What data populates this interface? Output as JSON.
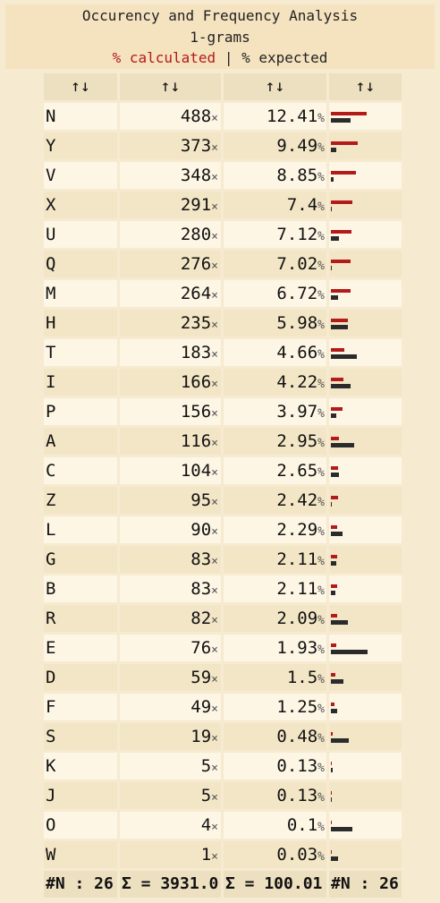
{
  "header": {
    "title": "Occurency and Frequency Analysis",
    "subtitle": "1-grams",
    "legend_calc": "% calculated",
    "legend_sep": "|",
    "legend_exp": "% expected",
    "calc_color": "#b31b1b",
    "exp_color": "#2b2b2b"
  },
  "columns": [
    "↑↓",
    "↑↓",
    "↑↓",
    "↑↓"
  ],
  "unit_count": "×",
  "unit_pct": "%",
  "rows": [
    {
      "letter": "N",
      "count": "488",
      "pct": "12.41",
      "calc": 12.41,
      "exp": 6.75
    },
    {
      "letter": "Y",
      "count": "373",
      "pct": "9.49",
      "calc": 9.49,
      "exp": 1.97
    },
    {
      "letter": "V",
      "count": "348",
      "pct": "8.85",
      "calc": 8.85,
      "exp": 0.98
    },
    {
      "letter": "X",
      "count": "291",
      "pct": "7.4",
      "calc": 7.4,
      "exp": 0.15
    },
    {
      "letter": "U",
      "count": "280",
      "pct": "7.12",
      "calc": 7.12,
      "exp": 2.76
    },
    {
      "letter": "Q",
      "count": "276",
      "pct": "7.02",
      "calc": 7.02,
      "exp": 0.1
    },
    {
      "letter": "M",
      "count": "264",
      "pct": "6.72",
      "calc": 6.72,
      "exp": 2.41
    },
    {
      "letter": "H",
      "count": "235",
      "pct": "5.98",
      "calc": 5.98,
      "exp": 6.09
    },
    {
      "letter": "T",
      "count": "183",
      "pct": "4.66",
      "calc": 4.66,
      "exp": 9.06
    },
    {
      "letter": "I",
      "count": "166",
      "pct": "4.22",
      "calc": 4.22,
      "exp": 6.97
    },
    {
      "letter": "P",
      "count": "156",
      "pct": "3.97",
      "calc": 3.97,
      "exp": 1.93
    },
    {
      "letter": "A",
      "count": "116",
      "pct": "2.95",
      "calc": 2.95,
      "exp": 8.17
    },
    {
      "letter": "C",
      "count": "104",
      "pct": "2.65",
      "calc": 2.65,
      "exp": 2.78
    },
    {
      "letter": "Z",
      "count": "95",
      "pct": "2.42",
      "calc": 2.42,
      "exp": 0.07
    },
    {
      "letter": "L",
      "count": "90",
      "pct": "2.29",
      "calc": 2.29,
      "exp": 4.03
    },
    {
      "letter": "G",
      "count": "83",
      "pct": "2.11",
      "calc": 2.11,
      "exp": 2.02
    },
    {
      "letter": "B",
      "count": "83",
      "pct": "2.11",
      "calc": 2.11,
      "exp": 1.49
    },
    {
      "letter": "R",
      "count": "82",
      "pct": "2.09",
      "calc": 2.09,
      "exp": 5.99
    },
    {
      "letter": "E",
      "count": "76",
      "pct": "1.93",
      "calc": 1.93,
      "exp": 12.7
    },
    {
      "letter": "D",
      "count": "59",
      "pct": "1.5",
      "calc": 1.5,
      "exp": 4.25
    },
    {
      "letter": "F",
      "count": "49",
      "pct": "1.25",
      "calc": 1.25,
      "exp": 2.23
    },
    {
      "letter": "S",
      "count": "19",
      "pct": "0.48",
      "calc": 0.48,
      "exp": 6.33
    },
    {
      "letter": "K",
      "count": "5",
      "pct": "0.13",
      "calc": 0.13,
      "exp": 0.77
    },
    {
      "letter": "J",
      "count": "5",
      "pct": "0.13",
      "calc": 0.13,
      "exp": 0.15
    },
    {
      "letter": "O",
      "count": "4",
      "pct": "0.1",
      "calc": 0.1,
      "exp": 7.51
    },
    {
      "letter": "W",
      "count": "1",
      "pct": "0.03",
      "calc": 0.03,
      "exp": 2.36
    }
  ],
  "footer": [
    "#N : 26",
    "Σ = 3931.0",
    "Σ = 100.01",
    "#N : 26"
  ]
}
